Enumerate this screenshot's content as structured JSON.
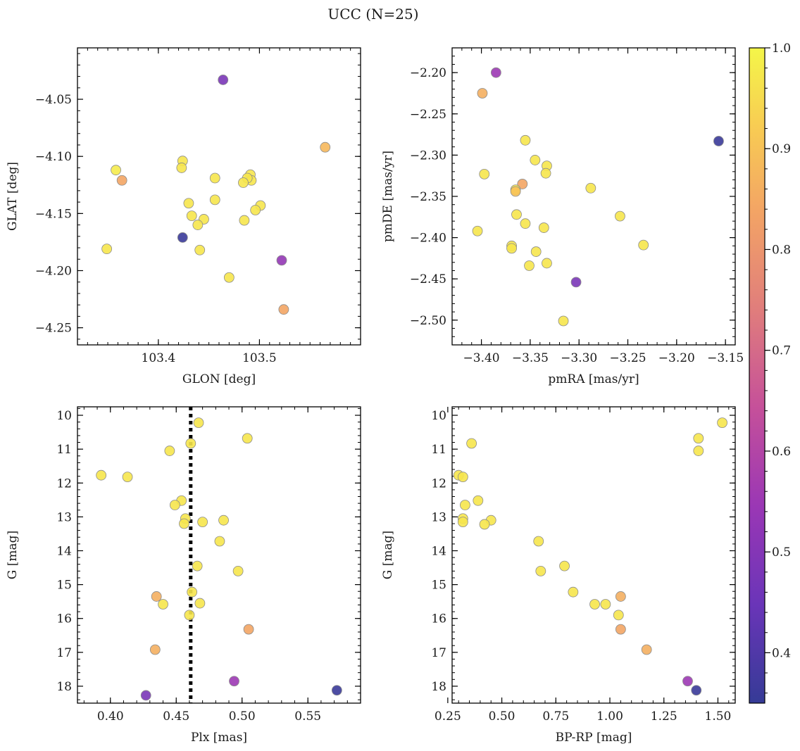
{
  "figure": {
    "title": "UCC (N=25)"
  },
  "colorbar": {
    "min": 0.35,
    "max": 1.0,
    "ticks": [
      "0.4",
      "0.5",
      "0.6",
      "0.7",
      "0.8",
      "0.9",
      "1.0"
    ],
    "colormap": "plasma"
  },
  "chart_data": [
    {
      "type": "scatter",
      "xlabel": "GLON [deg]",
      "ylabel": "GLAT [deg]",
      "xlim": [
        103.32,
        103.6
      ],
      "ylim": [
        -4.265,
        -4.005
      ],
      "xticks": [
        "103.4",
        "103.5"
      ],
      "yticks": [
        "-4.05",
        "-4.10",
        "-4.15",
        "-4.20",
        "-4.25"
      ],
      "minor_x": 0.01,
      "minor_y": 0.01,
      "points": [
        {
          "x": 103.464,
          "y": -4.033,
          "c": 0.48
        },
        {
          "x": 103.565,
          "y": -4.092,
          "c": 0.88
        },
        {
          "x": 103.358,
          "y": -4.112,
          "c": 0.98
        },
        {
          "x": 103.364,
          "y": -4.121,
          "c": 0.84
        },
        {
          "x": 103.424,
          "y": -4.104,
          "c": 0.97
        },
        {
          "x": 103.423,
          "y": -4.11,
          "c": 0.97
        },
        {
          "x": 103.456,
          "y": -4.119,
          "c": 0.97
        },
        {
          "x": 103.491,
          "y": -4.116,
          "c": 0.97
        },
        {
          "x": 103.492,
          "y": -4.121,
          "c": 0.97
        },
        {
          "x": 103.488,
          "y": -4.119,
          "c": 0.97
        },
        {
          "x": 103.484,
          "y": -4.123,
          "c": 0.97
        },
        {
          "x": 103.43,
          "y": -4.141,
          "c": 0.97
        },
        {
          "x": 103.456,
          "y": -4.138,
          "c": 0.97
        },
        {
          "x": 103.501,
          "y": -4.143,
          "c": 0.97
        },
        {
          "x": 103.496,
          "y": -4.147,
          "c": 0.97
        },
        {
          "x": 103.433,
          "y": -4.152,
          "c": 0.97
        },
        {
          "x": 103.445,
          "y": -4.155,
          "c": 0.97
        },
        {
          "x": 103.439,
          "y": -4.16,
          "c": 0.97
        },
        {
          "x": 103.485,
          "y": -4.156,
          "c": 0.97
        },
        {
          "x": 103.424,
          "y": -4.171,
          "c": 0.36
        },
        {
          "x": 103.349,
          "y": -4.181,
          "c": 0.97
        },
        {
          "x": 103.441,
          "y": -4.182,
          "c": 0.97
        },
        {
          "x": 103.522,
          "y": -4.191,
          "c": 0.53
        },
        {
          "x": 103.47,
          "y": -4.206,
          "c": 0.97
        },
        {
          "x": 103.524,
          "y": -4.234,
          "c": 0.84
        }
      ]
    },
    {
      "type": "scatter",
      "xlabel": "pmRA [mas/yr]",
      "ylabel": "pmDE [mas/yr]",
      "xlim": [
        -3.43,
        -3.14
      ],
      "ylim": [
        -2.53,
        -2.17
      ],
      "xticks": [
        "-3.40",
        "-3.35",
        "-3.30",
        "-3.25",
        "-3.20",
        "-3.15"
      ],
      "yticks": [
        "-2.20",
        "-2.25",
        "-2.30",
        "-2.35",
        "-2.40",
        "-2.45",
        "-2.50"
      ],
      "minor_x": 0.01,
      "minor_y": 0.01,
      "points": [
        {
          "x": -3.385,
          "y": -2.2,
          "c": 0.55
        },
        {
          "x": -3.399,
          "y": -2.225,
          "c": 0.86
        },
        {
          "x": -3.157,
          "y": -2.283,
          "c": 0.36
        },
        {
          "x": -3.355,
          "y": -2.282,
          "c": 0.97
        },
        {
          "x": -3.345,
          "y": -2.306,
          "c": 0.97
        },
        {
          "x": -3.333,
          "y": -2.313,
          "c": 0.97
        },
        {
          "x": -3.334,
          "y": -2.322,
          "c": 0.97
        },
        {
          "x": -3.397,
          "y": -2.323,
          "c": 0.97
        },
        {
          "x": -3.358,
          "y": -2.335,
          "c": 0.84
        },
        {
          "x": -3.365,
          "y": -2.342,
          "c": 0.97
        },
        {
          "x": -3.365,
          "y": -2.344,
          "c": 0.9
        },
        {
          "x": -3.288,
          "y": -2.34,
          "c": 0.97
        },
        {
          "x": -3.364,
          "y": -2.372,
          "c": 0.97
        },
        {
          "x": -3.258,
          "y": -2.374,
          "c": 0.97
        },
        {
          "x": -3.355,
          "y": -2.383,
          "c": 0.97
        },
        {
          "x": -3.336,
          "y": -2.388,
          "c": 0.97
        },
        {
          "x": -3.404,
          "y": -2.392,
          "c": 0.97
        },
        {
          "x": -3.234,
          "y": -2.409,
          "c": 0.97
        },
        {
          "x": -3.369,
          "y": -2.41,
          "c": 0.97
        },
        {
          "x": -3.369,
          "y": -2.413,
          "c": 0.97
        },
        {
          "x": -3.344,
          "y": -2.417,
          "c": 0.97
        },
        {
          "x": -3.333,
          "y": -2.431,
          "c": 0.97
        },
        {
          "x": -3.351,
          "y": -2.434,
          "c": 0.97
        },
        {
          "x": -3.303,
          "y": -2.454,
          "c": 0.48
        },
        {
          "x": -3.316,
          "y": -2.501,
          "c": 0.97
        }
      ]
    },
    {
      "type": "scatter",
      "xlabel": "Plx [mas]",
      "ylabel": "G [mag]",
      "xlim": [
        0.375,
        0.59
      ],
      "ylim": [
        18.5,
        9.75
      ],
      "xticks": [
        "0.40",
        "0.45",
        "0.50",
        "0.55"
      ],
      "yticks": [
        "10",
        "11",
        "12",
        "13",
        "14",
        "15",
        "16",
        "17",
        "18"
      ],
      "minor_x": 0.01,
      "minor_y": 0.2,
      "vline": 0.461,
      "points": [
        {
          "x": 0.467,
          "y": 10.22,
          "c": 0.97
        },
        {
          "x": 0.504,
          "y": 10.68,
          "c": 0.97
        },
        {
          "x": 0.461,
          "y": 10.83,
          "c": 0.97
        },
        {
          "x": 0.445,
          "y": 11.05,
          "c": 0.97
        },
        {
          "x": 0.393,
          "y": 11.77,
          "c": 0.97
        },
        {
          "x": 0.413,
          "y": 11.82,
          "c": 0.97
        },
        {
          "x": 0.454,
          "y": 12.52,
          "c": 0.97
        },
        {
          "x": 0.449,
          "y": 12.65,
          "c": 0.97
        },
        {
          "x": 0.457,
          "y": 13.05,
          "c": 0.97
        },
        {
          "x": 0.456,
          "y": 13.2,
          "c": 0.97
        },
        {
          "x": 0.47,
          "y": 13.15,
          "c": 0.97
        },
        {
          "x": 0.486,
          "y": 13.1,
          "c": 0.97
        },
        {
          "x": 0.483,
          "y": 13.72,
          "c": 0.97
        },
        {
          "x": 0.466,
          "y": 14.45,
          "c": 0.97
        },
        {
          "x": 0.497,
          "y": 14.6,
          "c": 0.97
        },
        {
          "x": 0.462,
          "y": 15.22,
          "c": 0.97
        },
        {
          "x": 0.435,
          "y": 15.35,
          "c": 0.86
        },
        {
          "x": 0.44,
          "y": 15.58,
          "c": 0.97
        },
        {
          "x": 0.468,
          "y": 15.55,
          "c": 0.97
        },
        {
          "x": 0.46,
          "y": 15.9,
          "c": 0.97
        },
        {
          "x": 0.505,
          "y": 16.32,
          "c": 0.84
        },
        {
          "x": 0.434,
          "y": 16.92,
          "c": 0.86
        },
        {
          "x": 0.494,
          "y": 17.85,
          "c": 0.55
        },
        {
          "x": 0.572,
          "y": 18.12,
          "c": 0.36
        },
        {
          "x": 0.427,
          "y": 18.27,
          "c": 0.48
        }
      ]
    },
    {
      "type": "scatter",
      "xlabel": "BP-RP [mag]",
      "ylabel": "G [mag]",
      "xlim": [
        0.27,
        1.58
      ],
      "ylim": [
        18.5,
        9.75
      ],
      "xticks": [
        "0.25",
        "0.50",
        "0.75",
        "1.00",
        "1.25",
        "1.50"
      ],
      "yticks": [
        "10",
        "11",
        "12",
        "13",
        "14",
        "15",
        "16",
        "17",
        "18"
      ],
      "minor_x": 0.05,
      "minor_y": 0.2,
      "points": [
        {
          "x": 1.52,
          "y": 10.22,
          "c": 0.97
        },
        {
          "x": 1.41,
          "y": 10.68,
          "c": 0.97
        },
        {
          "x": 1.41,
          "y": 11.05,
          "c": 0.97
        },
        {
          "x": 0.36,
          "y": 10.83,
          "c": 0.97
        },
        {
          "x": 0.3,
          "y": 11.77,
          "c": 0.97
        },
        {
          "x": 0.32,
          "y": 11.82,
          "c": 0.97
        },
        {
          "x": 0.39,
          "y": 12.52,
          "c": 0.97
        },
        {
          "x": 0.33,
          "y": 12.65,
          "c": 0.97
        },
        {
          "x": 0.32,
          "y": 13.05,
          "c": 0.97
        },
        {
          "x": 0.32,
          "y": 13.15,
          "c": 0.97
        },
        {
          "x": 0.45,
          "y": 13.1,
          "c": 0.97
        },
        {
          "x": 0.42,
          "y": 13.22,
          "c": 0.97
        },
        {
          "x": 0.67,
          "y": 13.72,
          "c": 0.97
        },
        {
          "x": 0.79,
          "y": 14.45,
          "c": 0.97
        },
        {
          "x": 0.68,
          "y": 14.6,
          "c": 0.97
        },
        {
          "x": 0.83,
          "y": 15.22,
          "c": 0.97
        },
        {
          "x": 1.05,
          "y": 15.35,
          "c": 0.86
        },
        {
          "x": 0.93,
          "y": 15.58,
          "c": 0.97
        },
        {
          "x": 0.98,
          "y": 15.58,
          "c": 0.97
        },
        {
          "x": 1.04,
          "y": 15.9,
          "c": 0.97
        },
        {
          "x": 1.05,
          "y": 16.32,
          "c": 0.84
        },
        {
          "x": 1.17,
          "y": 16.92,
          "c": 0.86
        },
        {
          "x": 1.36,
          "y": 17.85,
          "c": 0.55
        },
        {
          "x": 1.4,
          "y": 18.12,
          "c": 0.36
        }
      ]
    }
  ]
}
